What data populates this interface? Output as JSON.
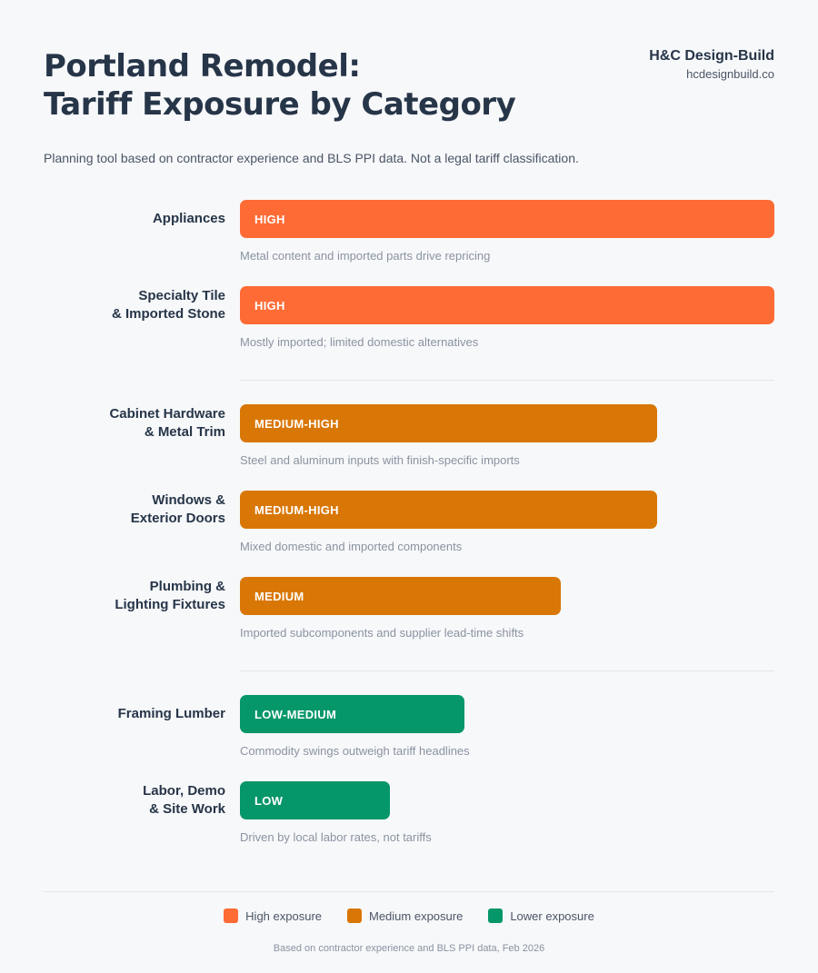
{
  "header": {
    "title_line1": "Portland Remodel:",
    "title_line2": "Tariff Exposure by Category",
    "brand_name": "H&C Design-Build",
    "brand_url": "hcdesignbuild.co"
  },
  "subtitle": "Planning tool based on contractor experience and BLS PPI data. Not a legal tariff classification.",
  "colors": {
    "high": "#ff6b35",
    "medium": "#d97706",
    "low": "#059669"
  },
  "chart_data": {
    "type": "bar",
    "orientation": "horizontal",
    "title": "Portland Remodel: Tariff Exposure by Category",
    "scale_levels": [
      "LOW",
      "LOW-MEDIUM",
      "MEDIUM",
      "MEDIUM-HIGH",
      "HIGH"
    ],
    "categories": [
      {
        "label_line1": "Appliances",
        "label_line2": "",
        "level": "HIGH",
        "score": 1.0,
        "group": "high",
        "note": "Metal content and imported parts drive repricing"
      },
      {
        "label_line1": "Specialty Tile",
        "label_line2": "& Imported Stone",
        "level": "HIGH",
        "score": 1.0,
        "group": "high",
        "note": "Mostly imported; limited domestic alternatives"
      },
      {
        "label_line1": "Cabinet Hardware",
        "label_line2": "& Metal Trim",
        "level": "MEDIUM-HIGH",
        "score": 0.78,
        "group": "medium",
        "note": "Steel and aluminum inputs with finish-specific imports"
      },
      {
        "label_line1": "Windows &",
        "label_line2": "Exterior Doors",
        "level": "MEDIUM-HIGH",
        "score": 0.78,
        "group": "medium",
        "note": "Mixed domestic and imported components"
      },
      {
        "label_line1": "Plumbing &",
        "label_line2": "Lighting Fixtures",
        "level": "MEDIUM",
        "score": 0.6,
        "group": "medium",
        "note": "Imported subcomponents and supplier lead-time shifts"
      },
      {
        "label_line1": "Framing Lumber",
        "label_line2": "",
        "level": "LOW-MEDIUM",
        "score": 0.42,
        "group": "low",
        "note": "Commodity swings outweigh tariff headlines"
      },
      {
        "label_line1": "Labor, Demo",
        "label_line2": "& Site Work",
        "level": "LOW",
        "score": 0.28,
        "group": "low",
        "note": "Driven by local labor rates, not tariffs"
      }
    ],
    "legend": [
      {
        "label": "High exposure",
        "group": "high"
      },
      {
        "label": "Medium exposure",
        "group": "medium"
      },
      {
        "label": "Lower exposure",
        "group": "low"
      }
    ]
  },
  "footer": "Based on contractor experience and BLS PPI data, Feb 2026"
}
